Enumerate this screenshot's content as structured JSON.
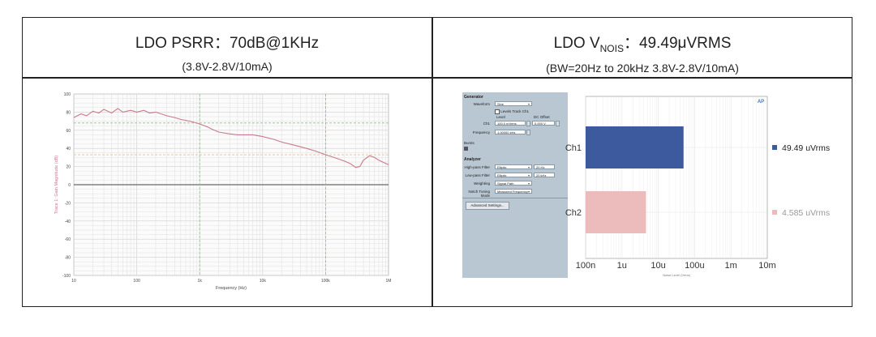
{
  "header_left": {
    "title": "LDO PSRR：70dB@1KHz",
    "subtitle": "(3.8V-2.8V/10mA)"
  },
  "header_right": {
    "title_main": "LDO V",
    "title_sub": "NOIS",
    "title_rest": "：49.49μVRMS",
    "subtitle": "(BW=20Hz to 20kHz 3.8V-2.8V/10mA)"
  },
  "generator": {
    "section_label": "Generator",
    "waveform_label": "Waveform",
    "waveform_value": "Sine",
    "checkbox_label": "Levels Track Ch1",
    "level_head": "Level",
    "dc_offset_head": "DC Offset",
    "ch1_label": "Ch1",
    "ch1_level": "100.0 mVrms",
    "ch1_offset": "0.000 V",
    "frequency_label": "Frequency",
    "frequency_value": "1.00000 kHz",
    "bursts_label": "Bursts",
    "analyzer_label": "Analyzer",
    "hpf_label": "High-pass Filter",
    "hpf_value": "Elliptic",
    "hpf_freq": "20 Hz",
    "lpf_label": "Low-pass Filter",
    "lpf_value": "Elliptic",
    "lpf_freq": "20 kHz",
    "weighting_label": "Weighting",
    "weighting_value": "Signal Path",
    "notch_label": "Notch Tuning Mode",
    "notch_value": "Measured Frequency",
    "advanced_button": "Advanced Settings..."
  },
  "colors": {
    "psrr_trace": "#c97a8a",
    "ch1_bar": "#3d5a9e",
    "ch2_bar": "#ecbcbc",
    "grid": "#cfcfcf",
    "marker_green": "#8fbf8f",
    "marker_orange": "#f0c090",
    "generator_bg": "#b8c7d1"
  },
  "chart_data": [
    {
      "type": "line",
      "title": "",
      "xlabel": "Frequency (Hz)",
      "ylabel": "Trace 1: Gain Magnitude (dB)",
      "x_scale": "log",
      "xlim": [
        10,
        1000000
      ],
      "ylim": [
        -100,
        100
      ],
      "x_ticks": [
        "10",
        "100",
        "1k",
        "10k",
        "100k",
        "1M"
      ],
      "y_ticks": [
        "100",
        "80",
        "60",
        "40",
        "20",
        "0",
        "-20",
        "-40",
        "-60",
        "-80",
        "-100"
      ],
      "grid": true,
      "reference_lines": [
        {
          "axis": "y",
          "value": 68,
          "color": "green"
        },
        {
          "axis": "y",
          "value": 33,
          "color": "orange"
        },
        {
          "axis": "y",
          "value": 0,
          "color": "black"
        },
        {
          "axis": "x",
          "value": 1000,
          "color": "green"
        },
        {
          "axis": "x",
          "value": 100000,
          "color": "green"
        }
      ],
      "series": [
        {
          "x": [
            10,
            13,
            16,
            20,
            25,
            30,
            40,
            50,
            60,
            80,
            100,
            130,
            160,
            200,
            300,
            400,
            500,
            700,
            1000,
            1300,
            1600,
            2000,
            3000,
            4000,
            5000,
            7000,
            10000,
            15000,
            20000,
            30000,
            50000,
            70000,
            100000,
            150000,
            200000,
            250000,
            300000,
            350000,
            400000,
            500000,
            600000,
            700000,
            1000000
          ],
          "y": [
            74,
            78,
            76,
            81,
            79,
            83,
            79,
            84,
            80,
            82,
            80,
            82,
            79,
            80,
            76,
            74,
            72,
            70,
            67,
            64,
            61,
            58,
            56,
            55,
            55,
            55,
            53,
            50,
            47,
            44,
            40,
            37,
            33,
            29,
            26,
            23,
            19,
            20,
            27,
            32,
            30,
            27,
            22
          ]
        }
      ]
    },
    {
      "type": "bar",
      "orientation": "horizontal",
      "title": "",
      "xlabel": "Noise Level (Vrms)",
      "x_scale": "log",
      "x_ticks": [
        "100n",
        "1u",
        "10u",
        "100u",
        "1m",
        "10m"
      ],
      "categories": [
        "Ch1",
        "Ch2"
      ],
      "values_uVrms": [
        49.49,
        4.585
      ],
      "value_labels": [
        "49.49  uVrms",
        "4.585  uVrms"
      ],
      "legend_placement": "right",
      "grid": true
    }
  ]
}
